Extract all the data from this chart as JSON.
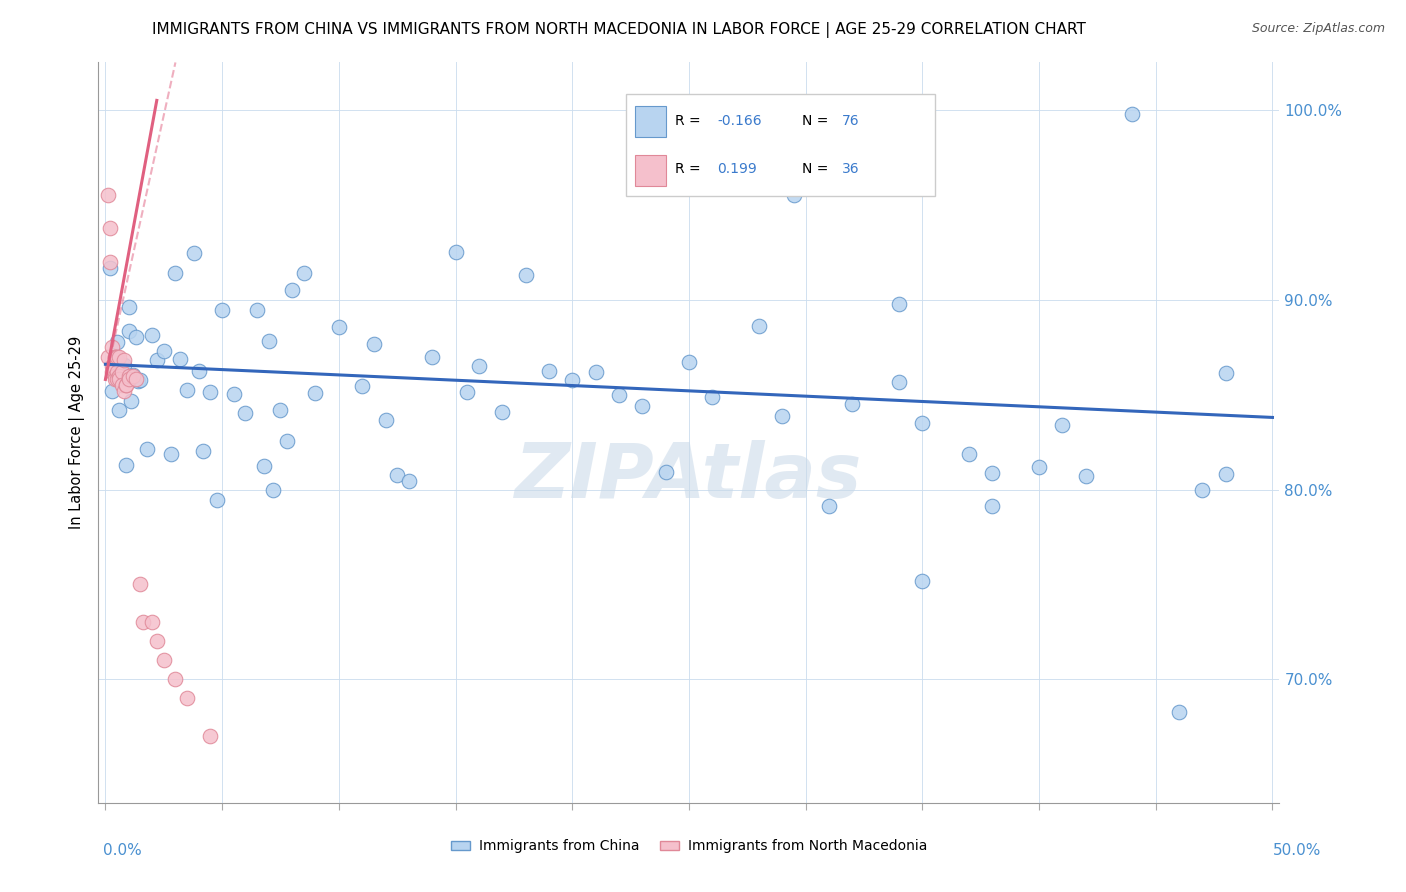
{
  "title": "IMMIGRANTS FROM CHINA VS IMMIGRANTS FROM NORTH MACEDONIA IN LABOR FORCE | AGE 25-29 CORRELATION CHART",
  "source": "Source: ZipAtlas.com",
  "ylabel": "In Labor Force | Age 25-29",
  "xlim": [
    -0.003,
    0.503
  ],
  "ylim": [
    0.635,
    1.025
  ],
  "ytick_values": [
    0.7,
    0.8,
    0.9,
    1.0
  ],
  "ytick_labels": [
    "70.0%",
    "80.0%",
    "90.0%",
    "100.0%"
  ],
  "china_color": "#b8d4f0",
  "china_edge": "#6699cc",
  "mace_color": "#f5c0cc",
  "mace_edge": "#e08898",
  "trend_china_color": "#3366bb",
  "trend_mace_color": "#e06080",
  "watermark": "ZIPAtlas",
  "watermark_color": "#c8d8e8",
  "legend_R_china": "-0.166",
  "legend_N_china": "76",
  "legend_R_mace": "0.199",
  "legend_N_mace": "36",
  "china_trend_x": [
    0.0,
    0.5
  ],
  "china_trend_y": [
    0.866,
    0.838
  ],
  "mace_trend_x": [
    0.0,
    0.022
  ],
  "mace_trend_y": [
    0.858,
    1.005
  ]
}
